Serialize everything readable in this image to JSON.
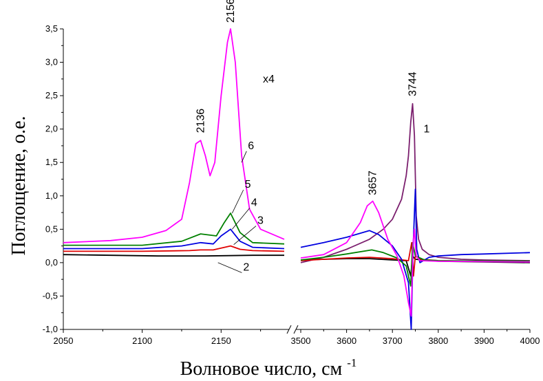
{
  "chart_data": {
    "type": "line",
    "ylabel": "Поглощение, о.е.",
    "xlabel_main": "Волновое число, см",
    "xlabel_sup": "-1",
    "ylim": [
      -1.0,
      3.5
    ],
    "yticks": [
      "-1,0",
      "-0,5",
      "0,0",
      "0,5",
      "1,0",
      "1,5",
      "2,0",
      "2,5",
      "3,0",
      "3,5"
    ],
    "grid": false,
    "x_break": true,
    "panels": [
      {
        "xlim": [
          2050,
          2190
        ],
        "xticks": [
          "2050",
          "2100",
          "2150"
        ]
      },
      {
        "xlim": [
          3500,
          4000
        ],
        "xticks": [
          "3500",
          "3600",
          "3700",
          "3800",
          "3900",
          "4000"
        ]
      }
    ],
    "colors": {
      "1": "#7b1f6e",
      "2": "#000000",
      "3": "#e00000",
      "4": "#0000e0",
      "5": "#008000",
      "6": "#ff00ff"
    },
    "series": [
      {
        "name": "1",
        "points": [
          [
            3500,
            0.0
          ],
          [
            3550,
            0.08
          ],
          [
            3600,
            0.2
          ],
          [
            3650,
            0.35
          ],
          [
            3680,
            0.5
          ],
          [
            3700,
            0.65
          ],
          [
            3720,
            0.95
          ],
          [
            3730,
            1.3
          ],
          [
            3735,
            1.6
          ],
          [
            3740,
            2.1
          ],
          [
            3744,
            2.38
          ],
          [
            3748,
            1.9
          ],
          [
            3752,
            0.7
          ],
          [
            3757,
            0.35
          ],
          [
            3765,
            0.2
          ],
          [
            3780,
            0.12
          ],
          [
            3800,
            0.08
          ],
          [
            3850,
            0.05
          ],
          [
            3900,
            0.04
          ],
          [
            4000,
            0.03
          ]
        ]
      },
      {
        "name": "2",
        "points": [
          [
            2050,
            0.12
          ],
          [
            2080,
            0.11
          ],
          [
            2110,
            0.1
          ],
          [
            2140,
            0.1
          ],
          [
            2170,
            0.11
          ],
          [
            2190,
            0.11
          ],
          [
            3500,
            0.04
          ],
          [
            3550,
            0.05
          ],
          [
            3600,
            0.06
          ],
          [
            3650,
            0.06
          ],
          [
            3700,
            0.04
          ],
          [
            3730,
            0.03
          ],
          [
            3740,
            -0.2
          ],
          [
            3744,
            0.1
          ],
          [
            3750,
            0.05
          ],
          [
            3800,
            0.02
          ],
          [
            3900,
            0.01
          ],
          [
            4000,
            0.0
          ]
        ]
      },
      {
        "name": "3",
        "points": [
          [
            2050,
            0.17
          ],
          [
            2100,
            0.17
          ],
          [
            2130,
            0.18
          ],
          [
            2137,
            0.19
          ],
          [
            2145,
            0.19
          ],
          [
            2156,
            0.25
          ],
          [
            2162,
            0.2
          ],
          [
            2170,
            0.18
          ],
          [
            2190,
            0.17
          ],
          [
            3500,
            0.03
          ],
          [
            3550,
            0.05
          ],
          [
            3600,
            0.07
          ],
          [
            3650,
            0.08
          ],
          [
            3700,
            0.06
          ],
          [
            3735,
            0.03
          ],
          [
            3742,
            0.3
          ],
          [
            3746,
            -0.2
          ],
          [
            3750,
            0.1
          ],
          [
            3760,
            0.05
          ],
          [
            3800,
            0.03
          ],
          [
            3900,
            0.02
          ],
          [
            4000,
            0.02
          ]
        ]
      },
      {
        "name": "4",
        "points": [
          [
            2050,
            0.21
          ],
          [
            2100,
            0.21
          ],
          [
            2125,
            0.25
          ],
          [
            2137,
            0.3
          ],
          [
            2145,
            0.28
          ],
          [
            2150,
            0.4
          ],
          [
            2156,
            0.5
          ],
          [
            2162,
            0.32
          ],
          [
            2170,
            0.23
          ],
          [
            2190,
            0.21
          ],
          [
            3500,
            0.23
          ],
          [
            3550,
            0.3
          ],
          [
            3600,
            0.38
          ],
          [
            3650,
            0.48
          ],
          [
            3670,
            0.42
          ],
          [
            3700,
            0.25
          ],
          [
            3720,
            0.05
          ],
          [
            3735,
            -0.3
          ],
          [
            3741,
            -1.0
          ],
          [
            3745,
            0.2
          ],
          [
            3750,
            1.1
          ],
          [
            3753,
            0.2
          ],
          [
            3760,
            0.0
          ],
          [
            3780,
            0.08
          ],
          [
            3800,
            0.1
          ],
          [
            3850,
            0.12
          ],
          [
            3900,
            0.13
          ],
          [
            4000,
            0.15
          ]
        ]
      },
      {
        "name": "5",
        "points": [
          [
            2050,
            0.26
          ],
          [
            2100,
            0.26
          ],
          [
            2125,
            0.32
          ],
          [
            2137,
            0.43
          ],
          [
            2147,
            0.4
          ],
          [
            2152,
            0.6
          ],
          [
            2156,
            0.74
          ],
          [
            2162,
            0.45
          ],
          [
            2170,
            0.3
          ],
          [
            2190,
            0.28
          ],
          [
            3500,
            0.04
          ],
          [
            3550,
            0.08
          ],
          [
            3600,
            0.13
          ],
          [
            3655,
            0.19
          ],
          [
            3680,
            0.15
          ],
          [
            3710,
            0.07
          ],
          [
            3730,
            -0.05
          ],
          [
            3740,
            -0.35
          ],
          [
            3744,
            0.3
          ],
          [
            3750,
            0.1
          ],
          [
            3770,
            0.04
          ],
          [
            3800,
            0.03
          ],
          [
            4000,
            0.02
          ]
        ]
      },
      {
        "name": "6",
        "points": [
          [
            2050,
            0.3
          ],
          [
            2080,
            0.33
          ],
          [
            2100,
            0.38
          ],
          [
            2115,
            0.48
          ],
          [
            2125,
            0.65
          ],
          [
            2130,
            1.2
          ],
          [
            2134,
            1.78
          ],
          [
            2137,
            1.83
          ],
          [
            2140,
            1.6
          ],
          [
            2143,
            1.3
          ],
          [
            2146,
            1.5
          ],
          [
            2150,
            2.5
          ],
          [
            2154,
            3.3
          ],
          [
            2156,
            3.5
          ],
          [
            2159,
            3.0
          ],
          [
            2163,
            1.6
          ],
          [
            2168,
            0.8
          ],
          [
            2175,
            0.5
          ],
          [
            2190,
            0.35
          ],
          [
            3500,
            0.07
          ],
          [
            3550,
            0.12
          ],
          [
            3600,
            0.3
          ],
          [
            3630,
            0.6
          ],
          [
            3645,
            0.85
          ],
          [
            3657,
            0.92
          ],
          [
            3670,
            0.75
          ],
          [
            3690,
            0.35
          ],
          [
            3710,
            0.1
          ],
          [
            3725,
            -0.2
          ],
          [
            3735,
            -0.6
          ],
          [
            3741,
            -0.8
          ],
          [
            3745,
            0.3
          ],
          [
            3748,
            0.5
          ],
          [
            3752,
            0.1
          ],
          [
            3760,
            0.03
          ],
          [
            3800,
            0.02
          ],
          [
            4000,
            0.01
          ]
        ]
      }
    ],
    "annotations": {
      "peaks": [
        {
          "text": "2156",
          "x": 2156,
          "y": 3.55
        },
        {
          "text": "2136",
          "x": 2137,
          "y": 1.9
        },
        {
          "text": "3744",
          "x": 3744,
          "y": 2.45
        },
        {
          "text": "3657",
          "x": 3657,
          "y": 0.97
        }
      ],
      "scale_note": "x4",
      "curve_labels": [
        {
          "text": "1",
          "x": 3768,
          "y": 1.95
        },
        {
          "text": "2",
          "x": 2164,
          "y": -0.12
        },
        {
          "text": "3",
          "x": 2173,
          "y": 0.58
        },
        {
          "text": "4",
          "x": 2169,
          "y": 0.85
        },
        {
          "text": "5",
          "x": 2165,
          "y": 1.12
        },
        {
          "text": "6",
          "x": 2167,
          "y": 1.7
        }
      ]
    }
  }
}
